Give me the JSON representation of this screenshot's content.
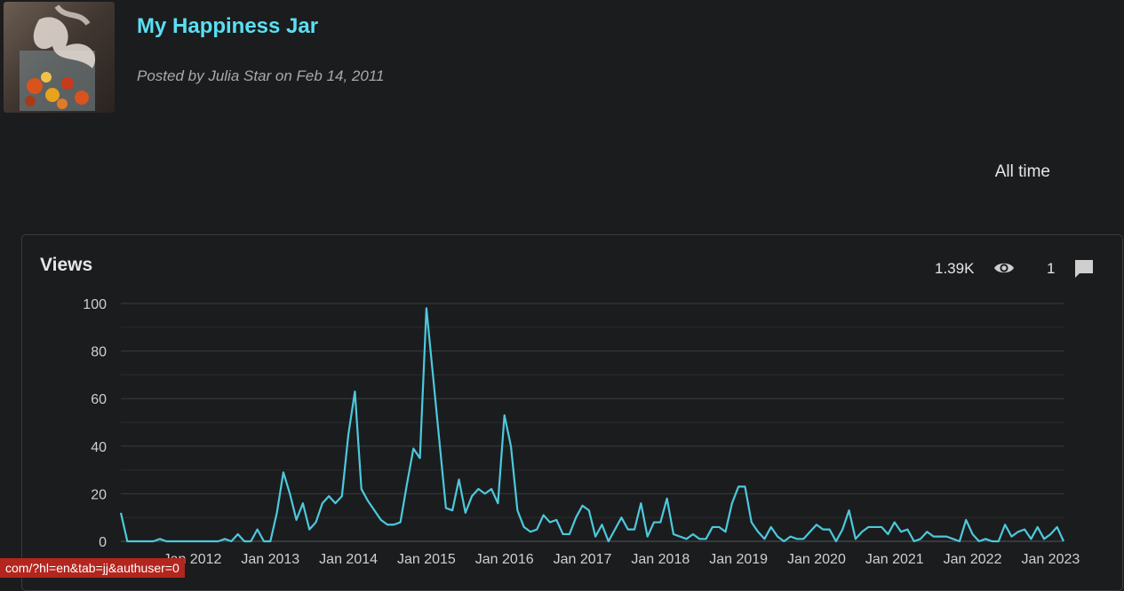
{
  "post": {
    "title": "My Happiness Jar",
    "byline": "Posted by Julia Star on Feb 14, 2011",
    "thumbnail_icon": "post-thumbnail-photo"
  },
  "range_selector": {
    "label": "All time"
  },
  "card": {
    "title": "Views",
    "views_count": "1.39K",
    "views_icon": "eye-icon",
    "comments_count": "1",
    "comments_icon": "comment-icon"
  },
  "status_bar": {
    "text": "com/?hl=en&tab=jj&authuser=0"
  },
  "colors": {
    "background": "#1b1c1e",
    "title_accent": "#5ae0f2",
    "line": "#4cc9dc",
    "grid": "#3a3b3e",
    "status_bar": "#b3261e"
  },
  "chart_data": {
    "type": "line",
    "title": "Views",
    "xlabel": "",
    "ylabel": "",
    "ylim": [
      0,
      100
    ],
    "y_ticks": [
      0,
      20,
      40,
      60,
      80,
      100
    ],
    "x_tick_labels": [
      "Jan 2012",
      "Jan 2013",
      "Jan 2014",
      "Jan 2015",
      "Jan 2016",
      "Jan 2017",
      "Jan 2018",
      "Jan 2019",
      "Jan 2020",
      "Jan 2021",
      "Jan 2022",
      "Jan 2023"
    ],
    "start_month": "2011-02",
    "grid": true,
    "series": [
      {
        "values": [
          12,
          0,
          0,
          0,
          0,
          0,
          1,
          0,
          0,
          0,
          0,
          0,
          0,
          0,
          0,
          0,
          1,
          0,
          3,
          0,
          0,
          5,
          0,
          0,
          12,
          29,
          20,
          9,
          16,
          5,
          8,
          16,
          19,
          16,
          19,
          45,
          63,
          22,
          17,
          13,
          9,
          7,
          7,
          8,
          24,
          39,
          35,
          98,
          70,
          42,
          14,
          13,
          26,
          12,
          19,
          22,
          20,
          22,
          16,
          53,
          40,
          13,
          6,
          4,
          5,
          11,
          8,
          9,
          3,
          3,
          10,
          15,
          13,
          2,
          7,
          0,
          5,
          10,
          5,
          5,
          16,
          2,
          8,
          8,
          18,
          3,
          2,
          1,
          3,
          1,
          1,
          6,
          6,
          4,
          16,
          23,
          23,
          8,
          4,
          1,
          6,
          2,
          0,
          2,
          1,
          1,
          4,
          7,
          5,
          5,
          0,
          5,
          13,
          1,
          4,
          6,
          6,
          6,
          3,
          8,
          4,
          5,
          0,
          1,
          4,
          2,
          2,
          2,
          1,
          0,
          9,
          3,
          0,
          1,
          0,
          0,
          7,
          2,
          4,
          5,
          1,
          6,
          1,
          3,
          6,
          0
        ]
      }
    ]
  }
}
